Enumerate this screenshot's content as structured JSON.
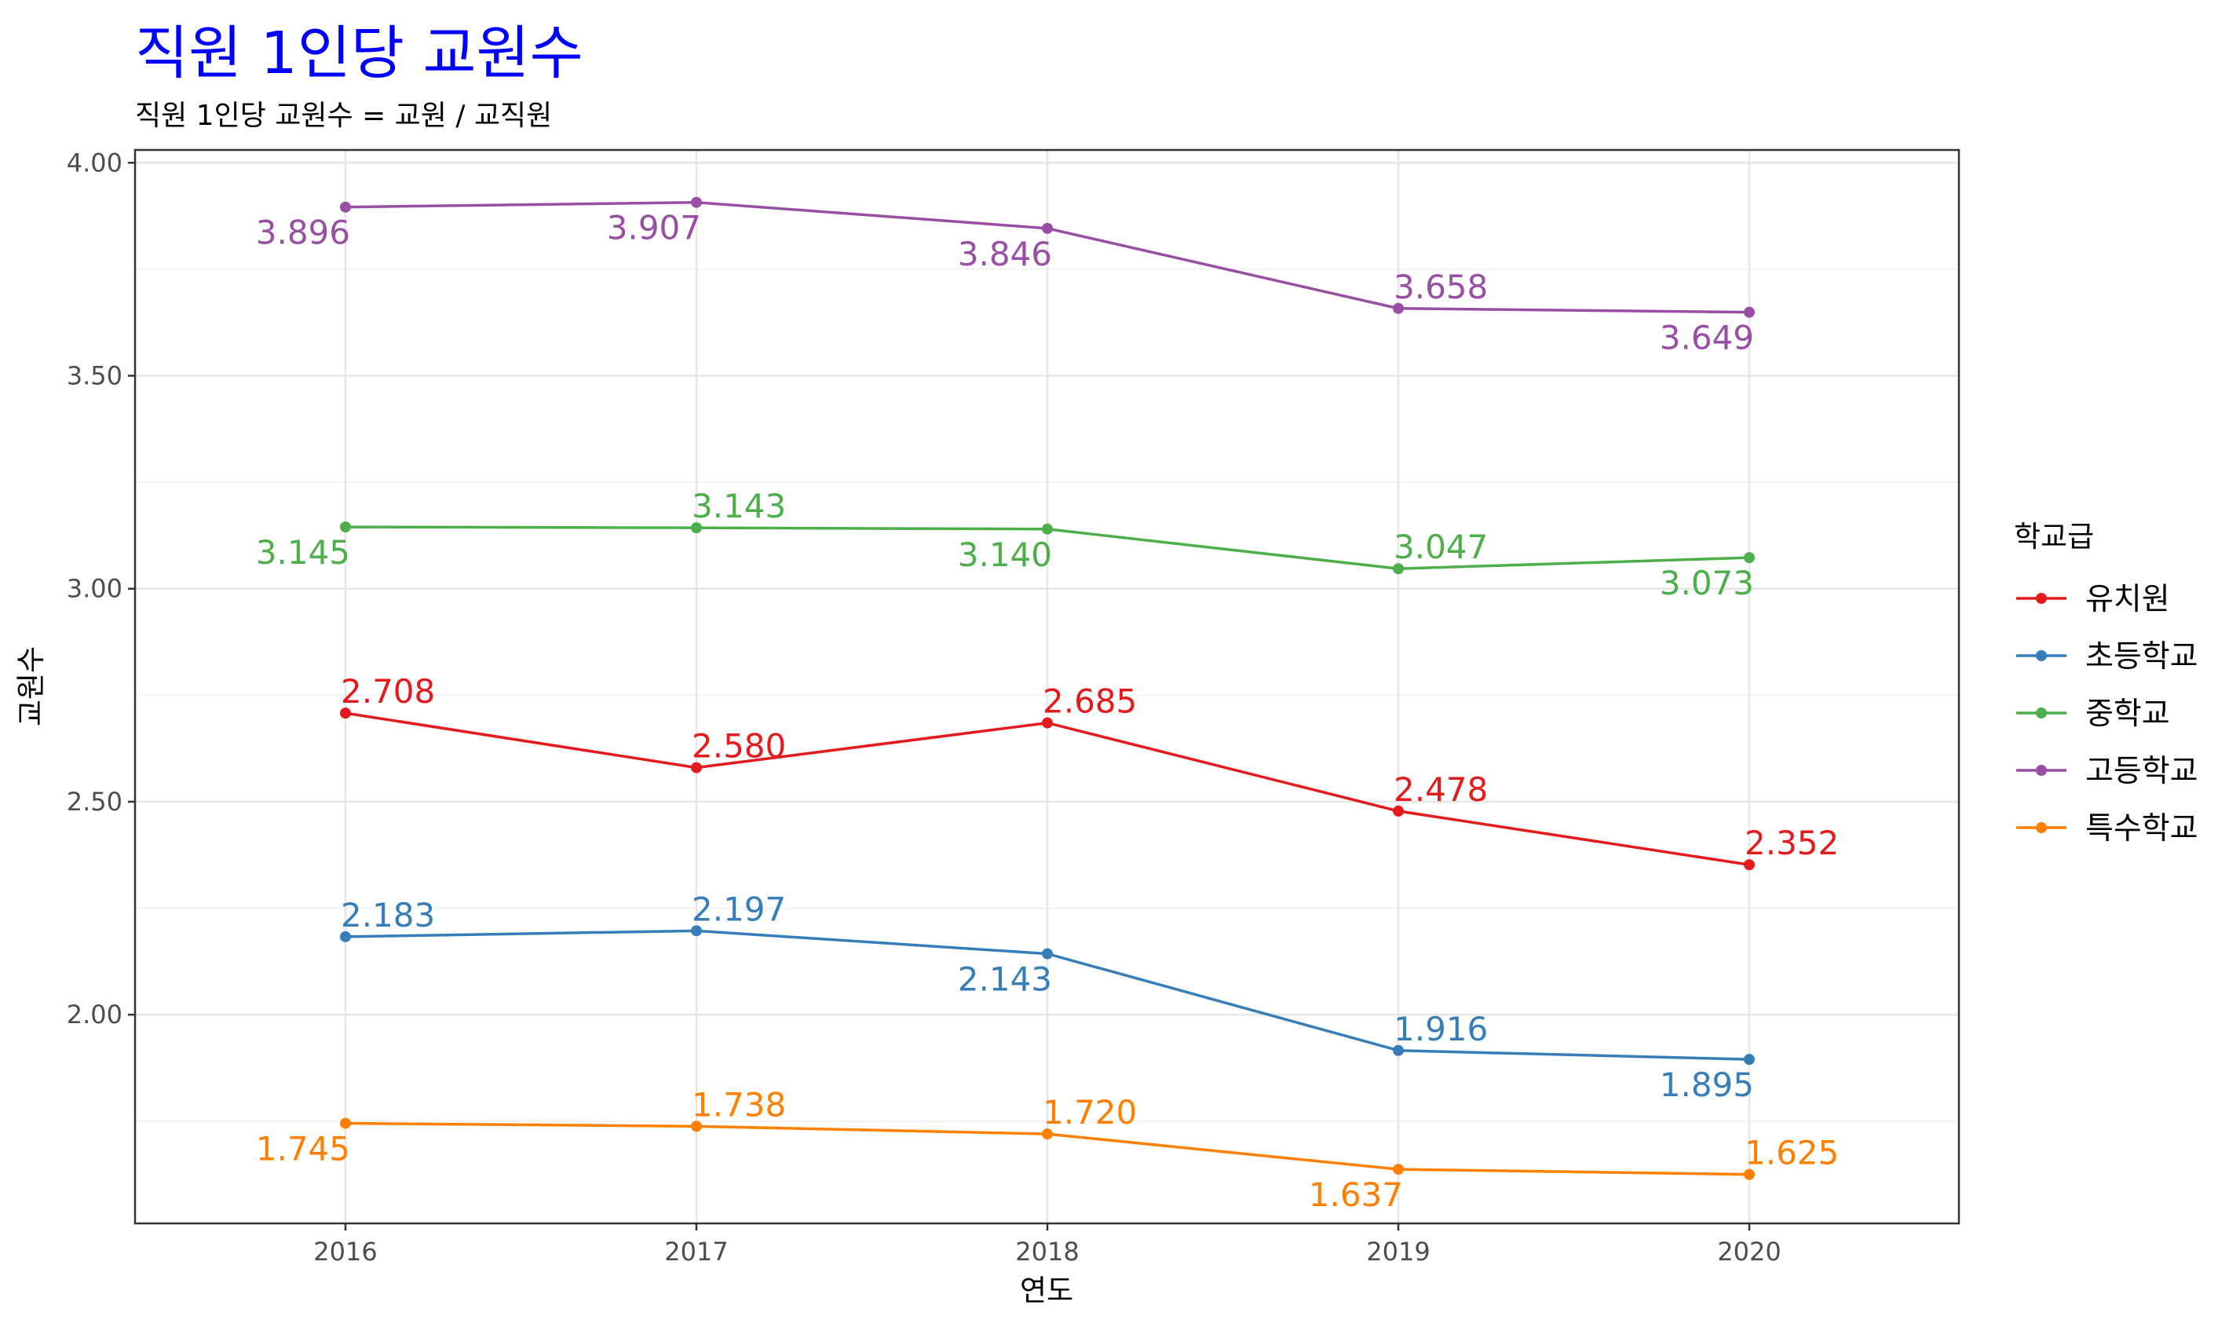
{
  "chart_data": {
    "type": "line",
    "title": "직원 1인당 교원수",
    "subtitle": "직원 1인당 교원수 = 교원 / 교직원",
    "xlabel": "연도",
    "ylabel": "교원수",
    "categories": [
      "2016",
      "2017",
      "2018",
      "2019",
      "2020"
    ],
    "ylim": [
      1.51,
      4.03
    ],
    "yticks": [
      2.0,
      2.5,
      3.0,
      3.5,
      4.0
    ],
    "ytick_labels": [
      "2.00",
      "2.50",
      "3.00",
      "3.50",
      "4.00"
    ],
    "grid": true,
    "legend_title": "학교급",
    "legend_position": "right",
    "series": [
      {
        "name": "유치원",
        "color": "#e41a1c",
        "values": [
          2.708,
          2.58,
          2.685,
          2.478,
          2.352
        ],
        "labels": [
          "2.708",
          "2.580",
          "2.685",
          "2.478",
          "2.352"
        ],
        "label_pos": [
          "above",
          "above",
          "above",
          "above",
          "above"
        ]
      },
      {
        "name": "초등학교",
        "color": "#377eb8",
        "values": [
          2.183,
          2.197,
          2.143,
          1.916,
          1.895
        ],
        "labels": [
          "2.183",
          "2.197",
          "2.143",
          "1.916",
          "1.895"
        ],
        "label_pos": [
          "above",
          "above",
          "below",
          "above",
          "below"
        ]
      },
      {
        "name": "중학교",
        "color": "#4daf4a",
        "values": [
          3.145,
          3.143,
          3.14,
          3.047,
          3.073
        ],
        "labels": [
          "3.145",
          "3.143",
          "3.140",
          "3.047",
          "3.073"
        ],
        "label_pos": [
          "below",
          "above",
          "below",
          "above",
          "below"
        ]
      },
      {
        "name": "고등학교",
        "color": "#984ea3",
        "values": [
          3.896,
          3.907,
          3.846,
          3.658,
          3.649
        ],
        "labels": [
          "3.896",
          "3.907",
          "3.846",
          "3.658",
          "3.649"
        ],
        "label_pos": [
          "below",
          "below",
          "below",
          "above",
          "below"
        ]
      },
      {
        "name": "특수학교",
        "color": "#ff7f00",
        "values": [
          1.745,
          1.738,
          1.72,
          1.637,
          1.625
        ],
        "labels": [
          "1.745",
          "1.738",
          "1.720",
          "1.637",
          "1.625"
        ],
        "label_pos": [
          "below",
          "above",
          "above",
          "below",
          "above"
        ]
      }
    ]
  }
}
